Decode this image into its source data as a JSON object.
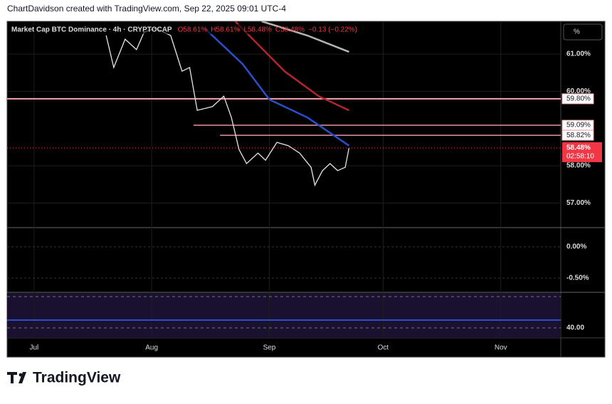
{
  "header": "ChartDavidson created with TradingView.com, Sep 22, 2025 09:01 UTC-4",
  "footer": {
    "brand": "TradingView"
  },
  "scale_button": "%",
  "chart_data": {
    "type": "line",
    "title": "Market Cap BTC Dominance · 4h · CRYPTOCAP",
    "legend_values": [
      "O58.61%",
      "H58.61%",
      "L58.48%",
      "C58.48%",
      "−0.13 (−0.22%)"
    ],
    "xlim": [
      -7.1,
      138.8
    ],
    "xticks": [
      {
        "value": 0,
        "label": "Jul"
      },
      {
        "value": 31,
        "label": "Aug"
      },
      {
        "value": 62,
        "label": "Sep"
      },
      {
        "value": 92,
        "label": "Oct"
      },
      {
        "value": 123,
        "label": "Nov"
      }
    ],
    "ylim": [
      56.34,
      61.88
    ],
    "yticks": [
      {
        "value": 61,
        "label": "61.00%"
      },
      {
        "value": 60,
        "label": "60.00%"
      },
      {
        "value": 58,
        "label": "58.00%"
      },
      {
        "value": 57,
        "label": "57.00%"
      }
    ],
    "series": [
      {
        "name": "Market Cap BTC Dominance",
        "color": "#e6e6e6",
        "x": [
          19,
          21,
          24,
          27,
          29,
          32,
          36,
          39,
          41,
          43,
          47,
          50,
          52,
          54,
          56,
          59,
          61,
          64,
          67,
          70,
          73,
          74,
          76,
          78,
          80,
          82,
          83
        ],
        "values": [
          61.5,
          60.64,
          61.4,
          61.12,
          61.59,
          61.69,
          61.5,
          60.54,
          60.64,
          59.49,
          59.59,
          59.87,
          59.3,
          58.44,
          58.06,
          58.34,
          58.15,
          58.63,
          58.54,
          58.34,
          57.96,
          57.48,
          57.87,
          58.06,
          57.87,
          57.96,
          58.48
        ]
      },
      {
        "color": "#2b4fc9",
        "x": [
          45,
          55,
          62,
          72,
          83
        ],
        "values": [
          61.69,
          60.73,
          59.78,
          59.3,
          58.54
        ]
      },
      {
        "color": "#b3262f",
        "x": [
          53,
          66,
          75,
          83
        ],
        "values": [
          61.88,
          60.54,
          59.87,
          59.49
        ]
      },
      {
        "color": "#b5b5b5",
        "x": [
          60,
          72,
          83
        ],
        "values": [
          61.88,
          61.5,
          61.06
        ]
      }
    ],
    "levels": [
      {
        "value": 59.8,
        "label": "59.80%",
        "from": -7.1
      },
      {
        "value": 59.09,
        "label": "59.09%",
        "from": 42
      },
      {
        "value": 58.82,
        "label": "58.82%",
        "from": 49
      }
    ],
    "last_price": {
      "value": 58.48,
      "label": "58.48%",
      "countdown": "02:58:10"
    },
    "macd_pane": {
      "ylim": [
        -0.716,
        0.284
      ],
      "yticks": [
        {
          "value": 0,
          "label": "0.00%"
        },
        {
          "value": -0.5,
          "label": "-0.50%"
        }
      ]
    },
    "rsi_pane": {
      "ylim": [
        17.3,
        74.5
      ],
      "yticks": [
        {
          "value": 40,
          "label": "40.00"
        }
      ],
      "bands": [
        30,
        70
      ],
      "color": "#2b4fc9"
    }
  }
}
